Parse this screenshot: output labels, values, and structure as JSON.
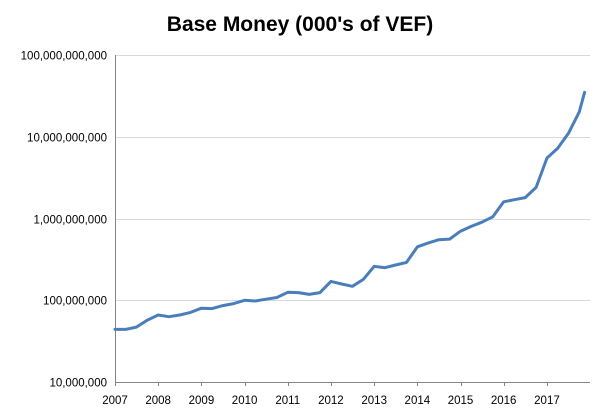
{
  "chart_data": {
    "type": "line",
    "title": "Base Money (000's of VEF)",
    "xlabel": "",
    "ylabel": "",
    "y_scale": "log",
    "ylim": [
      10000000,
      100000000000
    ],
    "y_ticks": [
      {
        "value": 10000000,
        "label": "10,000,000"
      },
      {
        "value": 100000000,
        "label": "100,000,000"
      },
      {
        "value": 1000000000,
        "label": "1,000,000,000"
      },
      {
        "value": 10000000000,
        "label": "10,000,000,000"
      },
      {
        "value": 100000000000,
        "label": "100,000,000,000"
      }
    ],
    "x_ticks": [
      "2007",
      "2008",
      "2009",
      "2010",
      "2011",
      "2012",
      "2013",
      "2014",
      "2015",
      "2016",
      "2017"
    ],
    "xlim": [
      "2007-01-01",
      "2017-12-31"
    ],
    "grid": "horizontal",
    "legend": "none",
    "series_color": "#4a7ebb",
    "series": [
      {
        "x": [
          "2007-01-01",
          "2007-04-01",
          "2007-07-01",
          "2007-10-01",
          "2008-01-01",
          "2008-04-01",
          "2008-07-01",
          "2008-10-01",
          "2009-01-01",
          "2009-04-01",
          "2009-07-01",
          "2009-10-01",
          "2010-01-01",
          "2010-04-01",
          "2010-07-01",
          "2010-10-01",
          "2011-01-01",
          "2011-04-01",
          "2011-07-01",
          "2011-10-01",
          "2012-01-01",
          "2012-04-01",
          "2012-07-01",
          "2012-10-01",
          "2013-01-01",
          "2013-04-01",
          "2013-07-01",
          "2013-10-01",
          "2014-01-01",
          "2014-04-01",
          "2014-07-01",
          "2014-10-01",
          "2015-01-01",
          "2015-04-01",
          "2015-07-01",
          "2015-10-01",
          "2016-01-01",
          "2016-04-01",
          "2016-07-01",
          "2016-10-01",
          "2017-01-01",
          "2017-04-01",
          "2017-07-01",
          "2017-10-01",
          "2017-11-15"
        ],
        "values": [
          44000000,
          44000000,
          47000000,
          57000000,
          66000000,
          63000000,
          66000000,
          71000000,
          80000000,
          79000000,
          86000000,
          91000000,
          100000000,
          98000000,
          103000000,
          108000000,
          125000000,
          124000000,
          118000000,
          124000000,
          170000000,
          158000000,
          148000000,
          180000000,
          260000000,
          250000000,
          270000000,
          290000000,
          450000000,
          500000000,
          550000000,
          560000000,
          700000000,
          800000000,
          900000000,
          1050000000,
          1600000000,
          1700000000,
          1800000000,
          2400000000,
          5500000000,
          7200000000,
          11000000000,
          20000000000,
          35000000000
        ]
      }
    ]
  }
}
